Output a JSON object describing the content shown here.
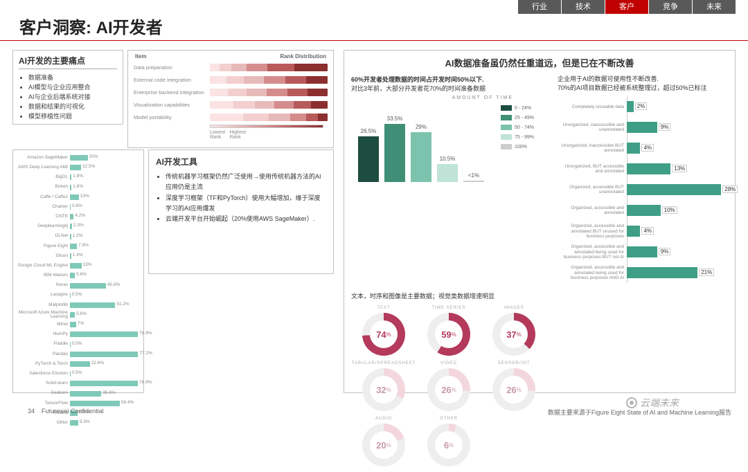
{
  "nav": {
    "items": [
      "行业",
      "技术",
      "客户",
      "竞争",
      "未来"
    ],
    "active_index": 2,
    "bg": "#595959",
    "active_bg": "#c00000",
    "color": "#ffffff"
  },
  "title": "客户洞察: AI开发者",
  "accent_line_color": "#c00000",
  "panel_border": "#c0c0c0",
  "painpoints": {
    "heading": "AI开发的主要痛点",
    "items": [
      "数据准备",
      "AI模型与企业应用整合",
      "AI与企业后端系统对接",
      "数据和结果的可视化",
      "模型移植性问题"
    ]
  },
  "rankdist": {
    "col_item": "Item",
    "col_rank": "Rank Distribution",
    "legend_low": "Lowest Rank",
    "legend_high": "Highest Rank",
    "palette": [
      "#fbe3e3",
      "#f3cfcf",
      "#e7baba",
      "#d58c8c",
      "#b85a5a",
      "#8c2f2f"
    ],
    "rows": [
      {
        "label": "Data preparation",
        "segs": [
          8,
          10,
          13,
          18,
          23,
          28
        ]
      },
      {
        "label": "External code integration",
        "segs": [
          14,
          15,
          17,
          18,
          18,
          18
        ]
      },
      {
        "label": "Enterprise backend integration",
        "segs": [
          15,
          16,
          17,
          18,
          17,
          17
        ]
      },
      {
        "label": "Visualization capabilities",
        "segs": [
          20,
          18,
          17,
          16,
          15,
          14
        ]
      },
      {
        "label": "Model portability",
        "segs": [
          28,
          22,
          18,
          14,
          10,
          8
        ]
      }
    ]
  },
  "tools_chart": {
    "bar_color": "#7fc9b8",
    "max": 80,
    "rows": [
      {
        "label": "Amazon SageMaker",
        "v": 20
      },
      {
        "label": "AWS Deep Learning AMI",
        "v": 12.5
      },
      {
        "label": "BigDL",
        "v": 1.8
      },
      {
        "label": "Bokeh",
        "v": 1.8
      },
      {
        "label": "Caffe / Caffe2",
        "v": 10
      },
      {
        "label": "Chainer",
        "v": 0.8
      },
      {
        "label": "CNTK",
        "v": 4.2
      },
      {
        "label": "Deeplearning4j",
        "v": 2.3
      },
      {
        "label": "DLNet",
        "v": 1.2
      },
      {
        "label": "Figure Eight",
        "v": 7.9
      },
      {
        "label": "Gluon",
        "v": 1.4
      },
      {
        "label": "Google Cloud ML Engine",
        "v": 13
      },
      {
        "label": "IBM Watson",
        "v": 5.6
      },
      {
        "label": "Keras",
        "v": 40.8
      },
      {
        "label": "Lasagne",
        "v": 0.5
      },
      {
        "label": "Matplotlib",
        "v": 51.2
      },
      {
        "label": "Microsoft Azure Machine Learning",
        "v": 5.6
      },
      {
        "label": "Mlnet",
        "v": 7
      },
      {
        "label": "NumPy",
        "v": 76.9
      },
      {
        "label": "Paddle",
        "v": 0.5
      },
      {
        "label": "Pandas",
        "v": 77.2
      },
      {
        "label": "PyTorch & Torch",
        "v": 22.6
      },
      {
        "label": "Salesforce Einstein",
        "v": 0.5
      },
      {
        "label": "Scikit-learn",
        "v": 76.9
      },
      {
        "label": "Seaborn",
        "v": 35.6
      },
      {
        "label": "TensorFlow",
        "v": 56.4
      },
      {
        "label": "Theano",
        "v": 8.8
      },
      {
        "label": "Other",
        "v": 9.3
      }
    ]
  },
  "tools_text": {
    "heading": "AI开发工具",
    "items": [
      "传统机器学习框架仍然广泛使用→使用传统机器方法的AI应用仍是主流",
      "深度学习框架（TF和PyTorch）使用大幅增加，缘于深度学习的AI应用爆发",
      "云端开发平台开始崛起（20%使用AWS SageMaker）."
    ]
  },
  "right": {
    "heading": "AI数据准备虽仍然任重道远，但是已在不断改善",
    "amount": {
      "line1": "60%开发者处理数据的时间占开发时间50%以下.",
      "line2": "对比3年前，大部分开发者花70%的时间准备数据",
      "axis_title": "AMOUNT OF TIME",
      "legend": [
        {
          "label": "0 - 24%",
          "color": "#1d4d40"
        },
        {
          "label": "25 - 49%",
          "color": "#3f8f76"
        },
        {
          "label": "50 - 74%",
          "color": "#7cc3ad"
        },
        {
          "label": "75 - 99%",
          "color": "#bfe3d7"
        },
        {
          "label": "100%",
          "color": "#cccccc"
        }
      ],
      "bars": [
        {
          "v": 26.5,
          "color": "#1d4d40"
        },
        {
          "v": 33.5,
          "color": "#3f8f76"
        },
        {
          "v": 29,
          "color": "#7cc3ad"
        },
        {
          "v": 10.5,
          "color": "#bfe3d7"
        },
        {
          "v": 1,
          "label": "<1%",
          "color": "#cccccc"
        }
      ],
      "ymax": 40,
      "categories": [
        "0-24",
        "25-49",
        "50-74",
        "75-99",
        "100"
      ]
    },
    "usability": {
      "intro": "企业用于AI的数据可使用性不断改善.\n70%的AI项目数据已经被系统整理过，超过50%已标注",
      "bar_color": "#3f9e86",
      "max": 30,
      "rows": [
        {
          "label": "Completely unusable data",
          "v": 2
        },
        {
          "label": "Unorganized, inaccessible and unannotated",
          "v": 9
        },
        {
          "label": "Unorganized, inaccessible BUT annotated",
          "v": 4
        },
        {
          "label": "Unorganized, BUT accessible and annotated",
          "v": 13
        },
        {
          "label": "Organized, accessible BUT unannotated",
          "v": 28
        },
        {
          "label": "Organized, accessible and annotated",
          "v": 10
        },
        {
          "label": "Organized, accessible and annotated BUT unused for business purposes",
          "v": 4
        },
        {
          "label": "Organized, accessible and annotated being used for business purposes BUT not AI",
          "v": 9
        },
        {
          "label": "Organized, accessible and annotated being used for business purposes AND AI",
          "v": 21
        }
      ]
    },
    "donuts": {
      "intro": "文本，时序和图像是主要数据；视觉类数据增速明显",
      "primary": "#b33a5b",
      "secondary": "#f3d7dd",
      "track": "#eeeeee",
      "items": [
        {
          "label": "TEXT",
          "v": 74,
          "c": "p"
        },
        {
          "label": "TIME SERIES",
          "v": 59,
          "c": "p"
        },
        {
          "label": "IMAGES",
          "v": 37,
          "c": "p"
        },
        {
          "label": "TABULAR/SPREADSHEET",
          "v": 32,
          "c": "s"
        },
        {
          "label": "VIDEO",
          "v": 26,
          "c": "s"
        },
        {
          "label": "SENSOR/IOT",
          "v": 26,
          "c": "s"
        },
        {
          "label": "AUDIO",
          "v": 20,
          "c": "s"
        },
        {
          "label": "OTHER",
          "v": 6,
          "c": "s"
        }
      ]
    }
  },
  "footer": {
    "page": "34",
    "conf": "Futurewei Confidential",
    "source": "数据主要来源于Figure Eight State of AI and Machine Learning报告"
  },
  "watermark": "云端未来"
}
